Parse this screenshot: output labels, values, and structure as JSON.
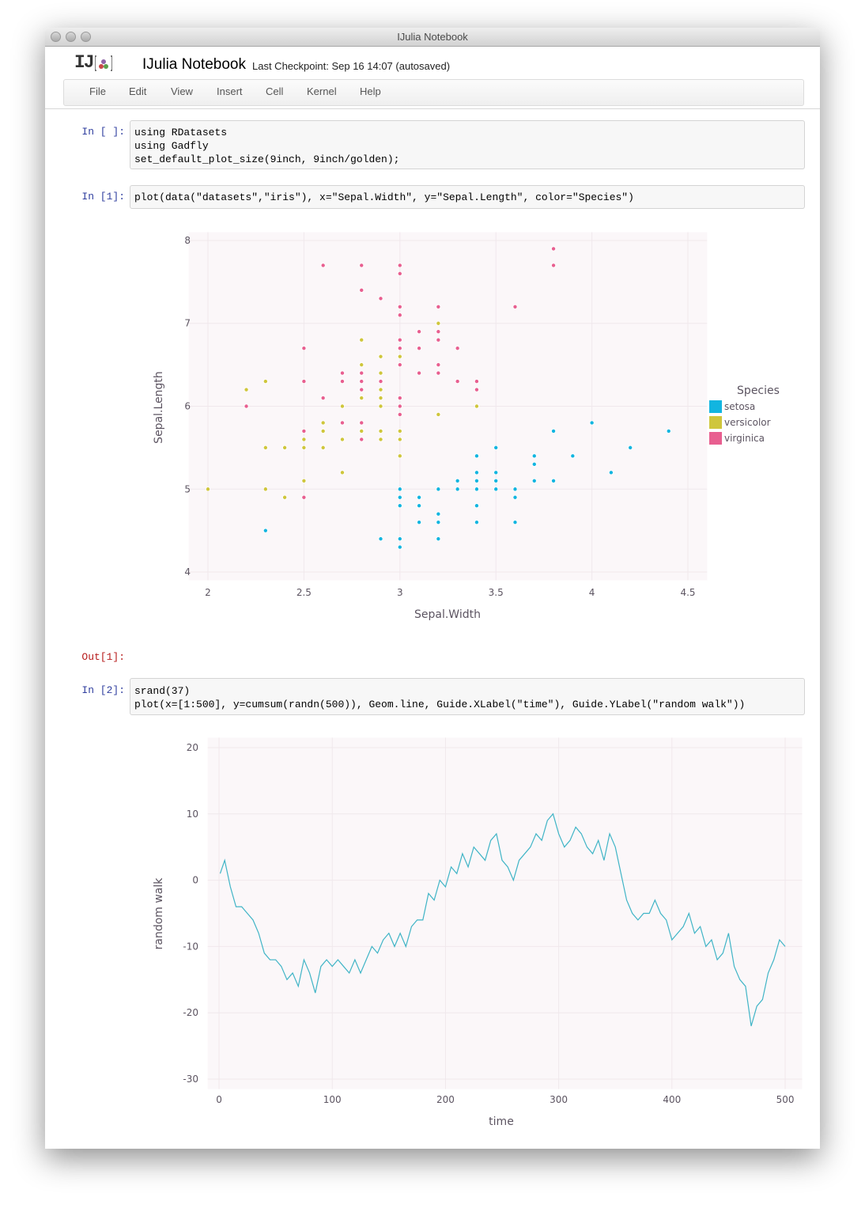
{
  "window": {
    "title": "IJulia Notebook"
  },
  "header": {
    "logo": "IJ",
    "name": "IJulia Notebook",
    "checkpoint": "Last Checkpoint: Sep 16 14:07 (autosaved)"
  },
  "menu": [
    "File",
    "Edit",
    "View",
    "Insert",
    "Cell",
    "Kernel",
    "Help"
  ],
  "cells": [
    {
      "prompt": "In [ ]:",
      "code": [
        "using RDatasets",
        "using Gadfly",
        "set_default_plot_size(9inch, 9inch/golden);"
      ]
    },
    {
      "prompt": "In [1]:",
      "code": [
        "plot(data(\"datasets\",\"iris\"), x=\"Sepal.Width\", y=\"Sepal.Length\", color=\"Species\")"
      ]
    },
    {
      "prompt": "Out[1]:"
    },
    {
      "prompt": "In [2]:",
      "code": [
        "srand(37)",
        "plot(x=[1:500], y=cumsum(randn(500)), Geom.line, Guide.XLabel(\"time\"), Guide.YLabel(\"random walk\"))"
      ]
    }
  ],
  "chart_data": [
    {
      "type": "scatter",
      "x_label": "Sepal.Width",
      "y_label": "Sepal.Length",
      "legend_title": "Species",
      "legend": "right",
      "grid": true,
      "xlim": [
        1.9,
        4.6
      ],
      "xticks": [
        2,
        2.5,
        3,
        3.5,
        4,
        4.5
      ],
      "ylim": [
        3.9,
        8.1
      ],
      "yticks": [
        4,
        5,
        6,
        7,
        8
      ],
      "series": [
        {
          "name": "setosa",
          "color": "#12b5e0",
          "x": [
            3.5,
            3.0,
            3.2,
            3.1,
            3.6,
            3.9,
            3.4,
            3.4,
            2.9,
            3.1,
            3.7,
            3.4,
            3.0,
            3.0,
            4.0,
            4.4,
            3.9,
            3.5,
            3.8,
            3.8,
            3.4,
            3.7,
            3.6,
            3.3,
            3.4,
            3.0,
            3.4,
            3.5,
            3.4,
            3.2,
            3.1,
            3.4,
            4.1,
            4.2,
            3.1,
            3.2,
            3.5,
            3.6,
            3.0,
            3.4,
            3.5,
            2.3,
            3.2,
            3.5,
            3.8,
            3.0,
            3.8,
            3.2,
            3.7,
            3.3
          ],
          "values": [
            5.1,
            4.9,
            4.7,
            4.6,
            5.0,
            5.4,
            4.6,
            5.0,
            4.4,
            4.9,
            5.4,
            4.8,
            4.8,
            4.3,
            5.8,
            5.7,
            5.4,
            5.1,
            5.7,
            5.1,
            5.4,
            5.1,
            4.6,
            5.1,
            4.8,
            5.0,
            5.0,
            5.2,
            5.2,
            4.7,
            4.8,
            5.4,
            5.2,
            5.5,
            4.9,
            5.0,
            5.5,
            4.9,
            4.4,
            5.1,
            5.0,
            4.5,
            4.4,
            5.0,
            5.1,
            4.8,
            5.1,
            4.6,
            5.3,
            5.0
          ]
        },
        {
          "name": "versicolor",
          "color": "#cfc63c",
          "x": [
            3.2,
            3.2,
            3.1,
            2.3,
            2.8,
            2.8,
            3.3,
            2.4,
            2.9,
            2.7,
            2.0,
            3.0,
            2.2,
            2.9,
            2.9,
            3.1,
            3.0,
            2.7,
            2.2,
            2.5,
            3.2,
            2.8,
            2.5,
            2.8,
            2.9,
            3.0,
            2.8,
            3.0,
            2.9,
            2.6,
            2.4,
            2.4,
            2.7,
            2.7,
            3.0,
            3.4,
            3.1,
            2.3,
            3.0,
            2.5,
            2.6,
            3.0,
            2.6,
            2.3,
            2.7,
            3.0,
            2.9,
            2.9,
            2.5,
            2.8
          ],
          "values": [
            7.0,
            6.4,
            6.9,
            5.5,
            6.5,
            5.7,
            6.3,
            4.9,
            6.6,
            5.2,
            5.0,
            5.9,
            6.0,
            6.1,
            5.6,
            6.7,
            5.6,
            5.8,
            6.2,
            5.6,
            5.9,
            6.1,
            6.3,
            6.1,
            6.4,
            6.6,
            6.8,
            6.7,
            6.0,
            5.7,
            5.5,
            5.5,
            5.8,
            6.0,
            5.4,
            6.0,
            6.7,
            6.3,
            5.6,
            5.5,
            5.5,
            6.1,
            5.8,
            5.0,
            5.6,
            5.7,
            5.7,
            6.2,
            5.1,
            5.7
          ]
        },
        {
          "name": "virginica",
          "color": "#e85f90",
          "x": [
            3.3,
            2.7,
            3.0,
            2.9,
            3.0,
            3.0,
            2.5,
            2.9,
            2.5,
            3.6,
            3.2,
            2.7,
            3.0,
            2.5,
            2.8,
            3.2,
            3.0,
            3.8,
            2.6,
            2.2,
            3.2,
            2.8,
            2.8,
            2.7,
            3.3,
            3.2,
            2.8,
            3.0,
            2.8,
            3.0,
            2.8,
            3.8,
            2.8,
            2.8,
            2.6,
            3.0,
            3.4,
            3.1,
            3.0,
            3.1,
            3.1,
            3.1,
            2.7,
            3.2,
            3.3,
            3.0,
            2.5,
            3.0,
            3.4,
            3.0
          ],
          "values": [
            6.3,
            5.8,
            7.1,
            6.3,
            6.5,
            7.6,
            4.9,
            7.3,
            6.7,
            7.2,
            6.5,
            6.4,
            6.8,
            5.7,
            5.8,
            6.4,
            6.5,
            7.7,
            7.7,
            6.0,
            6.9,
            5.6,
            7.7,
            6.3,
            6.7,
            7.2,
            6.2,
            6.1,
            6.4,
            7.2,
            7.4,
            7.9,
            6.4,
            6.3,
            6.1,
            7.7,
            6.3,
            6.4,
            6.0,
            6.9,
            6.7,
            6.9,
            5.8,
            6.8,
            6.7,
            6.7,
            6.3,
            6.5,
            6.2,
            5.9
          ]
        }
      ]
    },
    {
      "type": "line",
      "x_label": "time",
      "y_label": "random walk",
      "color": "#3fb4c6",
      "grid": true,
      "xlim": [
        -10,
        515
      ],
      "xticks": [
        0,
        100,
        200,
        300,
        400,
        500
      ],
      "ylim": [
        -31.5,
        21.5
      ],
      "yticks": [
        -30,
        -20,
        -10,
        0,
        10,
        20
      ],
      "x": [
        1,
        5,
        10,
        15,
        20,
        25,
        30,
        35,
        40,
        45,
        50,
        55,
        60,
        65,
        70,
        75,
        80,
        85,
        90,
        95,
        100,
        105,
        110,
        115,
        120,
        125,
        130,
        135,
        140,
        145,
        150,
        155,
        160,
        165,
        170,
        175,
        180,
        185,
        190,
        195,
        200,
        205,
        210,
        215,
        220,
        225,
        230,
        235,
        240,
        245,
        250,
        255,
        260,
        265,
        270,
        275,
        280,
        285,
        290,
        295,
        300,
        305,
        310,
        315,
        320,
        325,
        330,
        335,
        340,
        345,
        350,
        355,
        360,
        365,
        370,
        375,
        380,
        385,
        390,
        395,
        400,
        405,
        410,
        415,
        420,
        425,
        430,
        435,
        440,
        445,
        450,
        455,
        460,
        465,
        470,
        475,
        480,
        485,
        490,
        495,
        500
      ],
      "values": [
        1,
        3,
        -1,
        -4,
        -4,
        -5,
        -6,
        -8,
        -11,
        -12,
        -12,
        -13,
        -15,
        -14,
        -16,
        -12,
        -14,
        -17,
        -13,
        -12,
        -13,
        -12,
        -13,
        -14,
        -12,
        -14,
        -12,
        -10,
        -11,
        -9,
        -8,
        -10,
        -8,
        -10,
        -7,
        -6,
        -6,
        -2,
        -3,
        0,
        -1,
        2,
        1,
        4,
        2,
        5,
        4,
        3,
        6,
        7,
        3,
        2,
        0,
        3,
        4,
        5,
        7,
        6,
        9,
        10,
        7,
        5,
        6,
        8,
        7,
        5,
        4,
        6,
        3,
        7,
        5,
        1,
        -3,
        -5,
        -6,
        -5,
        -5,
        -3,
        -5,
        -6,
        -9,
        -8,
        -7,
        -5,
        -8,
        -7,
        -10,
        -9,
        -12,
        -11,
        -8,
        -13,
        -15,
        -16,
        -22,
        -19,
        -18,
        -14,
        -12,
        -9,
        -10
      ]
    }
  ]
}
